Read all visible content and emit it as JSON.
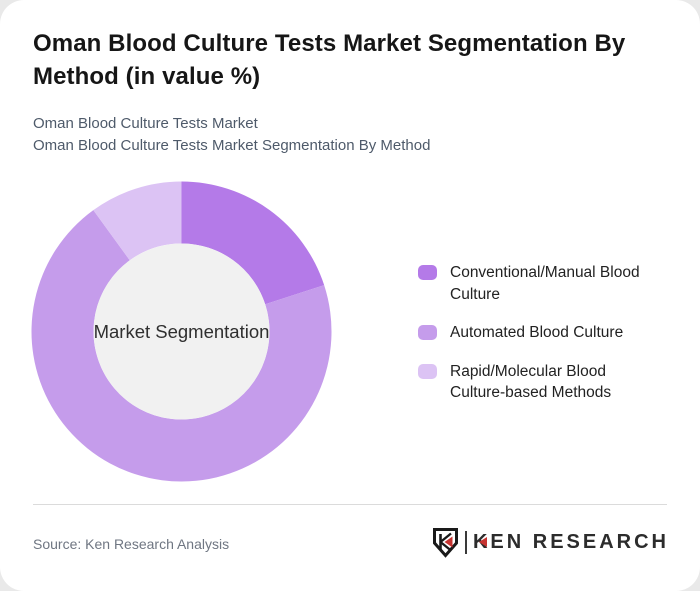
{
  "window": {
    "background": "#e9e9e9",
    "card_background": "#ffffff"
  },
  "header": {
    "title": "Oman Blood Culture Tests Market Segmentation By Method (in value %)",
    "subtitle_line1": "Oman Blood Culture Tests Market",
    "subtitle_line2": "Oman Blood Culture Tests Market Segmentation By Method"
  },
  "chart_data": {
    "type": "pie",
    "variant": "donut",
    "title": "Oman Blood Culture Tests Market Segmentation By Method (in value %)",
    "center_label": "Market Segmentation",
    "unit": "value %",
    "legend_position": "right",
    "start_angle_deg": 0,
    "inner_radius_ratio": 0.585,
    "inner_circle_color": "#f1f1f1",
    "series": [
      {
        "name": "Conventional/Manual Blood Culture",
        "value": 20,
        "color": "#b47ae8"
      },
      {
        "name": "Automated Blood Culture",
        "value": 70,
        "color": "#c59ceb"
      },
      {
        "name": "Rapid/Molecular Blood Culture-based Methods",
        "value": 10,
        "color": "#dcc3f4"
      }
    ]
  },
  "footer": {
    "source": "Source: Ken Research Analysis",
    "logo_text": "KEN RESEARCH"
  }
}
